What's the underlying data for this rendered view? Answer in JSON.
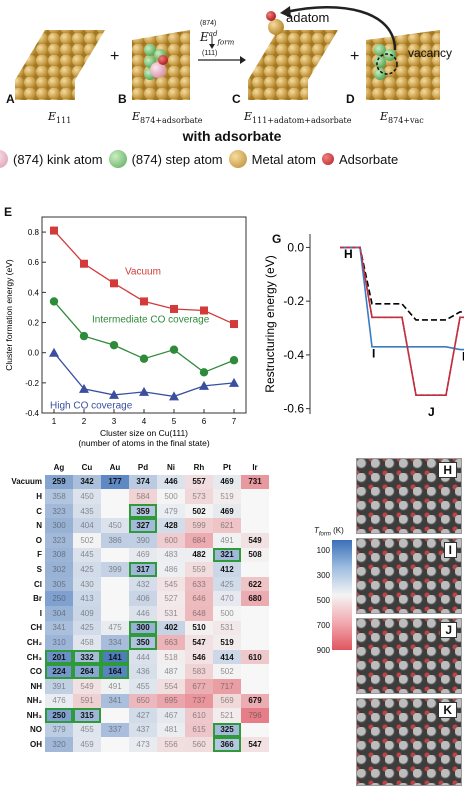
{
  "top": {
    "panels": [
      {
        "letter": "A",
        "label": "E",
        "sub": "111"
      },
      {
        "letter": "B",
        "label": "E",
        "sub": "874+adsorbate"
      },
      {
        "letter": "C",
        "label": "E",
        "sub": "111+adatom+adsorbate"
      },
      {
        "letter": "D",
        "label": "E",
        "sub": "874+vac"
      }
    ],
    "plus1": "+",
    "plus2": "+",
    "arrow_label": "E",
    "arrow_sup": "ad",
    "arrow_sub": "form",
    "arrow_top": "(874)",
    "arrow_bottom": "(111)",
    "adatom": "adatom",
    "vacancy": "vacancy",
    "subtitle": "with adsorbate",
    "legend": [
      {
        "label": "(874) kink atom",
        "color": "#f2c4d0"
      },
      {
        "label": "(874) step atom",
        "color": "#8fd68f"
      },
      {
        "label": "Metal atom",
        "color": "#e0b95c"
      },
      {
        "label": "Adsorbate",
        "color": "#d43a3a"
      }
    ]
  },
  "chart_E": {
    "letter": "E",
    "chart_data": {
      "type": "line",
      "x": [
        1,
        2,
        3,
        4,
        5,
        6,
        7
      ],
      "series": [
        {
          "name": "Vacuum",
          "color": "#d33a3a",
          "values": [
            0.81,
            0.59,
            0.46,
            0.34,
            0.29,
            0.28,
            0.19
          ]
        },
        {
          "name": "Intermediate CO coverage",
          "color": "#2e8b3a",
          "values": [
            0.34,
            0.11,
            0.05,
            -0.04,
            0.02,
            -0.13,
            -0.05
          ]
        },
        {
          "name": "High CO coverage",
          "color": "#3a4fa0",
          "values": [
            0.0,
            -0.24,
            -0.28,
            -0.26,
            -0.29,
            -0.22,
            -0.2
          ]
        }
      ],
      "ylabel": "Cluster formation energy (eV)",
      "xlabel": "Cluster size on Cu(111)",
      "xlabel2": "(number of atoms in the final state)",
      "ylim": [
        -0.4,
        0.9
      ],
      "yticks": [
        "0.8",
        "0.6",
        "0.4",
        "0.2",
        "0.0",
        "-0.2",
        "-0.4"
      ],
      "xticks": [
        "1",
        "2",
        "3",
        "4",
        "5",
        "6",
        "7"
      ]
    }
  },
  "chart_G": {
    "letter": "G",
    "chart_data": {
      "type": "line",
      "ylabel": "Restructuring energy (eV)",
      "ylim": [
        -0.62,
        0.05
      ],
      "yticks": [
        "0.0",
        "-0.2",
        "-0.4",
        "-0.6"
      ],
      "point_labels": [
        "H",
        "I",
        "J",
        "K"
      ],
      "series": [
        {
          "color": "#000000",
          "dash": "6,3",
          "values": [
            0.0,
            -0.21,
            -0.27,
            -0.24
          ]
        },
        {
          "color": "#c03040",
          "dash": "none",
          "values": [
            0.0,
            -0.26,
            -0.55,
            -0.26
          ]
        },
        {
          "color": "#3a7cc0",
          "dash": "none",
          "values": [
            0.0,
            -0.37,
            -0.37,
            -0.38
          ]
        },
        {
          "color": "#c03040",
          "dash": "4,2",
          "values": [
            0.0,
            -0.26,
            -0.55,
            -0.26
          ]
        }
      ]
    }
  },
  "table_F": {
    "letter": "F",
    "columns": [
      "Ag",
      "Cu",
      "Au",
      "Pd",
      "Ni",
      "Rh",
      "Pt",
      "Ir"
    ],
    "rows": [
      {
        "name": "Vacuum",
        "values": [
          "259",
          "342",
          "177",
          "374",
          "446",
          "557",
          "469",
          "731"
        ]
      },
      {
        "name": "H",
        "values": [
          "358",
          "450",
          "",
          "584",
          "500",
          "573",
          "519",
          ""
        ]
      },
      {
        "name": "C",
        "values": [
          "323",
          "435",
          "",
          "359",
          "479",
          "502",
          "469",
          ""
        ]
      },
      {
        "name": "N",
        "values": [
          "300",
          "404",
          "450",
          "327",
          "428",
          "599",
          "621",
          ""
        ]
      },
      {
        "name": "O",
        "values": [
          "323",
          "502",
          "386",
          "390",
          "600",
          "684",
          "491",
          "549"
        ]
      },
      {
        "name": "F",
        "values": [
          "308",
          "445",
          "",
          "469",
          "483",
          "482",
          "321",
          "508"
        ]
      },
      {
        "name": "S",
        "values": [
          "302",
          "425",
          "399",
          "317",
          "486",
          "559",
          "412",
          ""
        ]
      },
      {
        "name": "Cl",
        "values": [
          "305",
          "430",
          "",
          "432",
          "545",
          "633",
          "425",
          "622"
        ]
      },
      {
        "name": "Br",
        "values": [
          "250",
          "413",
          "",
          "406",
          "527",
          "646",
          "470",
          "680"
        ]
      },
      {
        "name": "I",
        "values": [
          "304",
          "409",
          "",
          "446",
          "531",
          "648",
          "500",
          ""
        ]
      },
      {
        "name": "CH",
        "values": [
          "341",
          "425",
          "475",
          "300",
          "402",
          "510",
          "531",
          ""
        ]
      },
      {
        "name": "CH₂",
        "values": [
          "310",
          "458",
          "334",
          "350",
          "663",
          "547",
          "519",
          ""
        ]
      },
      {
        "name": "CH₃",
        "values": [
          "201",
          "332",
          "141",
          "444",
          "518",
          "546",
          "414",
          "610"
        ]
      },
      {
        "name": "CO",
        "values": [
          "224",
          "264",
          "164",
          "436",
          "487",
          "583",
          "502",
          ""
        ]
      },
      {
        "name": "NH",
        "values": [
          "391",
          "549",
          "491",
          "455",
          "554",
          "677",
          "717",
          ""
        ]
      },
      {
        "name": "NH₂",
        "values": [
          "476",
          "591",
          "341",
          "650",
          "695",
          "737",
          "569",
          "679"
        ]
      },
      {
        "name": "NH₃",
        "values": [
          "250",
          "315",
          "",
          "427",
          "467",
          "610",
          "521",
          "796"
        ]
      },
      {
        "name": "NO",
        "values": [
          "379",
          "455",
          "337",
          "437",
          "481",
          "615",
          "325",
          ""
        ]
      },
      {
        "name": "OH",
        "values": [
          "320",
          "459",
          "",
          "473",
          "556",
          "560",
          "366",
          "547"
        ]
      }
    ],
    "colorbar_label": "T",
    "colorbar_sub": "form",
    "colorbar_unit": "(K)",
    "colorbar_ticks": [
      "100",
      "300",
      "500",
      "700",
      "900"
    ]
  },
  "images": [
    {
      "letter": "H"
    },
    {
      "letter": "I"
    },
    {
      "letter": "J"
    },
    {
      "letter": "K"
    }
  ]
}
